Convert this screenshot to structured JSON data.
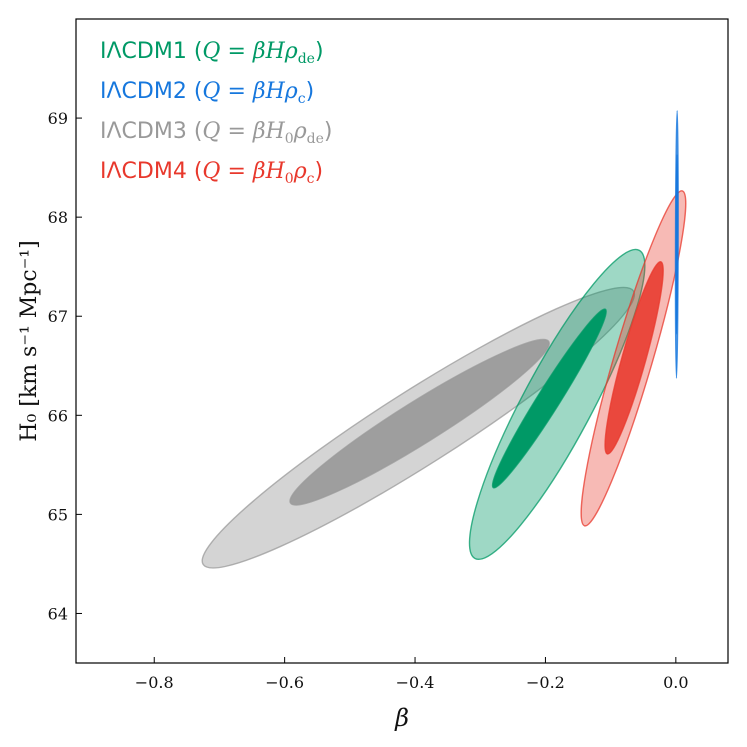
{
  "chart_data": {
    "type": "contour",
    "title": "",
    "xlabel": "β",
    "ylabel": "H₀ [km s⁻¹ Mpc⁻¹]",
    "xlim": [
      -0.92,
      0.08
    ],
    "ylim": [
      63.5,
      70.0
    ],
    "x_ticks": [
      -0.8,
      -0.6,
      -0.4,
      -0.2,
      0.0
    ],
    "x_tick_labels": [
      "−0.8",
      "−0.6",
      "−0.4",
      "−0.2",
      "0.0"
    ],
    "y_ticks": [
      64,
      65,
      66,
      67,
      68,
      69
    ],
    "y_tick_labels": [
      "64",
      "65",
      "66",
      "67",
      "68",
      "69"
    ],
    "legend_position": "top-left",
    "series": [
      {
        "name": "IΛCDM3",
        "legend_label": "IΛCDM3 (Q = βH₀ρde)",
        "color": "#999999",
        "draw_order": 1,
        "contours": [
          {
            "level": "2sigma",
            "center": [
              -0.395,
              65.875
            ],
            "semi_major_axis_end": [
              -0.065,
              67.255
            ],
            "semi_minor_axis_end": [
              -0.433,
              66.155
            ],
            "fill_opacity": 0.42
          },
          {
            "level": "1sigma",
            "center": [
              -0.393,
              65.93
            ],
            "semi_major_axis_end": [
              -0.195,
              66.745
            ],
            "semi_minor_axis_end": [
              -0.414,
              66.09
            ],
            "fill_opacity": 0.92
          }
        ]
      },
      {
        "name": "IΛCDM1",
        "legend_label": "IΛCDM1 (Q = βHρde)",
        "color": "#009966",
        "draw_order": 2,
        "contours": [
          {
            "level": "2sigma",
            "center": [
              -0.182,
              66.11
            ],
            "semi_major_axis_end": [
              -0.056,
              67.665
            ],
            "semi_minor_axis_end": [
              -0.234,
              66.185
            ],
            "fill_opacity": 0.38
          },
          {
            "level": "1sigma",
            "center": [
              -0.194,
              66.17
            ],
            "semi_major_axis_end": [
              -0.108,
              67.07
            ],
            "semi_minor_axis_end": [
              -0.21,
              66.207
            ],
            "fill_opacity": 1.0
          }
        ]
      },
      {
        "name": "IΛCDM4",
        "legend_label": "IΛCDM4 (Q = βH₀ρc)",
        "color": "#e8382c",
        "draw_order": 3,
        "contours": [
          {
            "level": "2sigma",
            "center": [
              -0.065,
              66.575
            ],
            "semi_major_axis_end": [
              0.01,
              68.265
            ],
            "semi_minor_axis_end": [
              -0.094,
              66.608
            ],
            "fill_opacity": 0.35
          },
          {
            "level": "1sigma",
            "center": [
              -0.064,
              66.58
            ],
            "semi_major_axis_end": [
              -0.023,
              67.55
            ],
            "semi_minor_axis_end": [
              -0.082,
              66.597
            ],
            "fill_opacity": 0.88
          }
        ]
      },
      {
        "name": "IΛCDM2",
        "legend_label": "IΛCDM2 (Q = βHρc)",
        "color": "#1677dd",
        "draw_order": 4,
        "contours": [
          {
            "level": "2sigma",
            "center": [
              0.0015,
              67.725
            ],
            "semi_major_axis_end": [
              0.002,
              69.075
            ],
            "semi_minor_axis_end": [
              -0.0005,
              67.725
            ],
            "fill_opacity": 0.65
          },
          {
            "level": "1sigma",
            "center": [
              0.0015,
              67.725
            ],
            "semi_major_axis_end": [
              0.0018,
              68.63
            ],
            "semi_minor_axis_end": [
              0.0008,
              67.725
            ],
            "fill_opacity": 0.95
          }
        ]
      }
    ],
    "legend": [
      {
        "prefix": "IΛCDM1",
        "open": " (",
        "Q": "Q",
        "eq": " = ",
        "b": "β",
        "H": "H",
        "sub0": "",
        "rho": "ρ",
        "rsub": "de",
        "close": ")",
        "color": "#009966"
      },
      {
        "prefix": "IΛCDM2",
        "open": " (",
        "Q": "Q",
        "eq": " = ",
        "b": "β",
        "H": "H",
        "sub0": "",
        "rho": "ρ",
        "rsub": "c",
        "close": ")",
        "color": "#1677dd"
      },
      {
        "prefix": "IΛCDM3",
        "open": " (",
        "Q": "Q",
        "eq": " = ",
        "b": "β",
        "H": "H",
        "sub0": "0",
        "rho": "ρ",
        "rsub": "de",
        "close": ")",
        "color": "#999999"
      },
      {
        "prefix": "IΛCDM4",
        "open": " (",
        "Q": "Q",
        "eq": " = ",
        "b": "β",
        "H": "H",
        "sub0": "0",
        "rho": "ρ",
        "rsub": "c",
        "close": ")",
        "color": "#e8382c"
      }
    ]
  }
}
